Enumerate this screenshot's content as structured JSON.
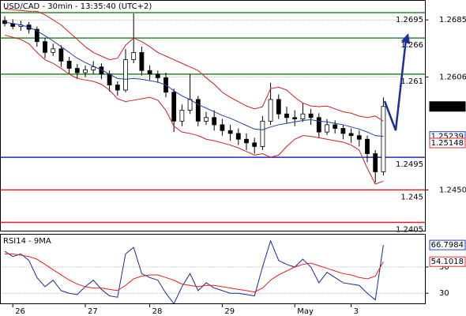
{
  "chart_data": [
    {
      "type": "candlestick",
      "title": "USD/CAD - 30min - 13:35:40 (UTC+2)",
      "categories": [
        null,
        "26",
        null,
        null,
        null,
        null,
        null,
        null,
        null,
        null,
        "27",
        null,
        null,
        null,
        null,
        null,
        null,
        null,
        "28",
        null,
        null,
        null,
        null,
        null,
        null,
        null,
        null,
        "29",
        null,
        null,
        null,
        null,
        null,
        null,
        null,
        null,
        "May",
        null,
        null,
        null,
        null,
        null,
        null,
        "3",
        null,
        null,
        null,
        null
      ],
      "open": [
        1.2684,
        1.268,
        1.2676,
        1.2678,
        1.2672,
        1.2655,
        1.264,
        1.2645,
        1.2628,
        1.2618,
        1.2612,
        1.2616,
        1.262,
        1.261,
        1.2595,
        1.2588,
        1.263,
        1.264,
        1.2615,
        1.261,
        1.2605,
        1.2585,
        1.2545,
        1.256,
        1.2575,
        1.2545,
        1.255,
        1.254,
        1.2532,
        1.2528,
        1.252,
        1.2515,
        1.251,
        1.2545,
        1.2575,
        1.2555,
        1.255,
        1.2548,
        1.2555,
        1.255,
        1.253,
        1.254,
        1.2535,
        1.2528,
        1.2525,
        1.252,
        1.25,
        1.2475
      ],
      "high": [
        1.269,
        1.2686,
        1.2684,
        1.2682,
        1.2676,
        1.266,
        1.2652,
        1.265,
        1.2634,
        1.2624,
        1.2622,
        1.2628,
        1.2625,
        1.2615,
        1.26,
        1.2645,
        1.2694,
        1.2648,
        1.2622,
        1.2615,
        1.2612,
        1.259,
        1.2568,
        1.261,
        1.258,
        1.2558,
        1.256,
        1.2548,
        1.254,
        1.2535,
        1.2528,
        1.2522,
        1.2552,
        1.2598,
        1.2582,
        1.2565,
        1.256,
        1.257,
        1.2562,
        1.2556,
        1.2548,
        1.2546,
        1.254,
        1.2535,
        1.2532,
        1.2525,
        1.2505,
        1.2578
      ],
      "low": [
        1.2676,
        1.2672,
        1.267,
        1.2666,
        1.2648,
        1.2632,
        1.2635,
        1.262,
        1.261,
        1.2604,
        1.2606,
        1.261,
        1.2603,
        1.2586,
        1.258,
        1.2585,
        1.2625,
        1.2608,
        1.2602,
        1.2598,
        1.2578,
        1.253,
        1.2538,
        1.2555,
        1.2538,
        1.254,
        1.2532,
        1.2525,
        1.2518,
        1.2512,
        1.2505,
        1.25,
        1.2505,
        1.254,
        1.2548,
        1.2542,
        1.2538,
        1.2544,
        1.254,
        1.2522,
        1.2526,
        1.2528,
        1.252,
        1.2515,
        1.251,
        1.2488,
        1.246,
        1.247
      ],
      "close": [
        1.268,
        1.2676,
        1.2678,
        1.2672,
        1.2655,
        1.264,
        1.2645,
        1.2628,
        1.2618,
        1.2612,
        1.2616,
        1.262,
        1.261,
        1.2595,
        1.2588,
        1.263,
        1.264,
        1.2615,
        1.261,
        1.2605,
        1.2585,
        1.2545,
        1.256,
        1.2575,
        1.2545,
        1.255,
        1.254,
        1.2532,
        1.2528,
        1.252,
        1.2515,
        1.251,
        1.2545,
        1.2575,
        1.2555,
        1.255,
        1.2548,
        1.2555,
        1.255,
        1.253,
        1.254,
        1.2535,
        1.2528,
        1.2525,
        1.252,
        1.25,
        1.2475,
        1.25653
      ],
      "candle_color": "#000000",
      "lines": [
        {
          "color": "#cc2020",
          "values": [
            1.27,
            1.2699,
            1.2698,
            1.2697,
            1.2697,
            1.2692,
            1.2685,
            1.2678,
            1.2668,
            1.2658,
            1.2648,
            1.264,
            1.2635,
            1.263,
            1.2632,
            1.265,
            1.266,
            1.2655,
            1.2648,
            1.264,
            1.2635,
            1.263,
            1.2625,
            1.262,
            1.2615,
            1.2605,
            1.2596,
            1.2585,
            1.2578,
            1.2572,
            1.2566,
            1.2562,
            1.2565,
            1.259,
            1.2592,
            1.2588,
            1.2578,
            1.257,
            1.2566,
            1.2565,
            1.2566,
            1.2562,
            1.2558,
            1.2556,
            1.2552,
            1.255,
            1.2552,
            1.2545
          ]
        },
        {
          "color": "#2040a8",
          "values": [
            1.2682,
            1.268,
            1.2678,
            1.2675,
            1.267,
            1.2663,
            1.2656,
            1.2648,
            1.264,
            1.2632,
            1.2626,
            1.2621,
            1.2616,
            1.261,
            1.2604,
            1.2603,
            1.2604,
            1.2603,
            1.2601,
            1.2599,
            1.2595,
            1.2587,
            1.258,
            1.2575,
            1.2568,
            1.2563,
            1.2558,
            1.2553,
            1.2549,
            1.2544,
            1.2539,
            1.2534,
            1.2533,
            1.2537,
            1.254,
            1.2542,
            1.2544,
            1.2546,
            1.2547,
            1.2545,
            1.2544,
            1.2542,
            1.254,
            1.2537,
            1.2534,
            1.253,
            1.2525,
            1.25239
          ]
        },
        {
          "color": "#cc2020",
          "values": [
            1.2664,
            1.2661,
            1.2658,
            1.2652,
            1.264,
            1.263,
            1.2625,
            1.2618,
            1.261,
            1.2604,
            1.2602,
            1.26,
            1.2596,
            1.2588,
            1.2576,
            1.2572,
            1.2574,
            1.2576,
            1.2578,
            1.2574,
            1.256,
            1.2538,
            1.253,
            1.2528,
            1.2525,
            1.252,
            1.2518,
            1.2515,
            1.2512,
            1.2508,
            1.2503,
            1.2498,
            1.25,
            1.2495,
            1.2498,
            1.251,
            1.252,
            1.2525,
            1.2524,
            1.2522,
            1.252,
            1.2518,
            1.2516,
            1.2512,
            1.2505,
            1.248,
            1.2458,
            1.2462
          ]
        }
      ],
      "ylim": [
        1.2393,
        1.2712
      ],
      "yticks": [
        1.2685,
        1.2606,
        {
          "value": 1.245,
          "label": "1.2450"
        }
      ],
      "grid": true,
      "levels": [
        {
          "value": 1.2695,
          "color": "#2a8a2a"
        },
        {
          "value": 1.266,
          "color": "#2a8a2a"
        },
        {
          "value": 1.261,
          "color": "#2a8a2a"
        },
        {
          "value": 1.2495,
          "color": "#1c2fbf"
        },
        {
          "value": 1.245,
          "color": "#e02020"
        },
        {
          "value": 1.2405,
          "color": "#e02020"
        }
      ],
      "price_tags": [
        {
          "value": 1.25653,
          "color": "#000000"
        },
        {
          "value": 1.25239,
          "color": "#1c3fcf"
        },
        {
          "value": 1.25148,
          "color": "#e03030"
        }
      ]
    },
    {
      "type": "line",
      "title": "RSI14 - 9MA",
      "lines": [
        {
          "color": "#1a2a9a",
          "values": [
            62,
            58,
            60,
            55,
            42,
            35,
            40,
            32,
            30,
            29,
            35,
            40,
            33,
            28,
            27,
            60,
            65,
            45,
            42,
            40,
            30,
            22,
            35,
            45,
            32,
            38,
            34,
            32,
            30,
            30,
            29,
            28,
            50,
            70,
            55,
            52,
            50,
            56,
            50,
            38,
            46,
            42,
            38,
            37,
            36,
            30,
            25,
            66.7984
          ]
        },
        {
          "color": "#e02020",
          "values": [
            60,
            60,
            59,
            58,
            56,
            52,
            48,
            44,
            40,
            37,
            35,
            34,
            34,
            33,
            32,
            36,
            41,
            43,
            44,
            44,
            42,
            40,
            37,
            36,
            35,
            36,
            36,
            35,
            34,
            33,
            32,
            31,
            34,
            40,
            44,
            47,
            50,
            52,
            53,
            51,
            49,
            47,
            45,
            44,
            42,
            41,
            43,
            54.1018
          ]
        }
      ],
      "ylim": [
        22,
        75
      ],
      "yticks": [
        50,
        30
      ],
      "grid": true,
      "price_tags": [
        {
          "value": 66.7984,
          "color": "#1c3fcf"
        },
        {
          "value": 54.1018,
          "color": "#e03030"
        }
      ]
    }
  ]
}
